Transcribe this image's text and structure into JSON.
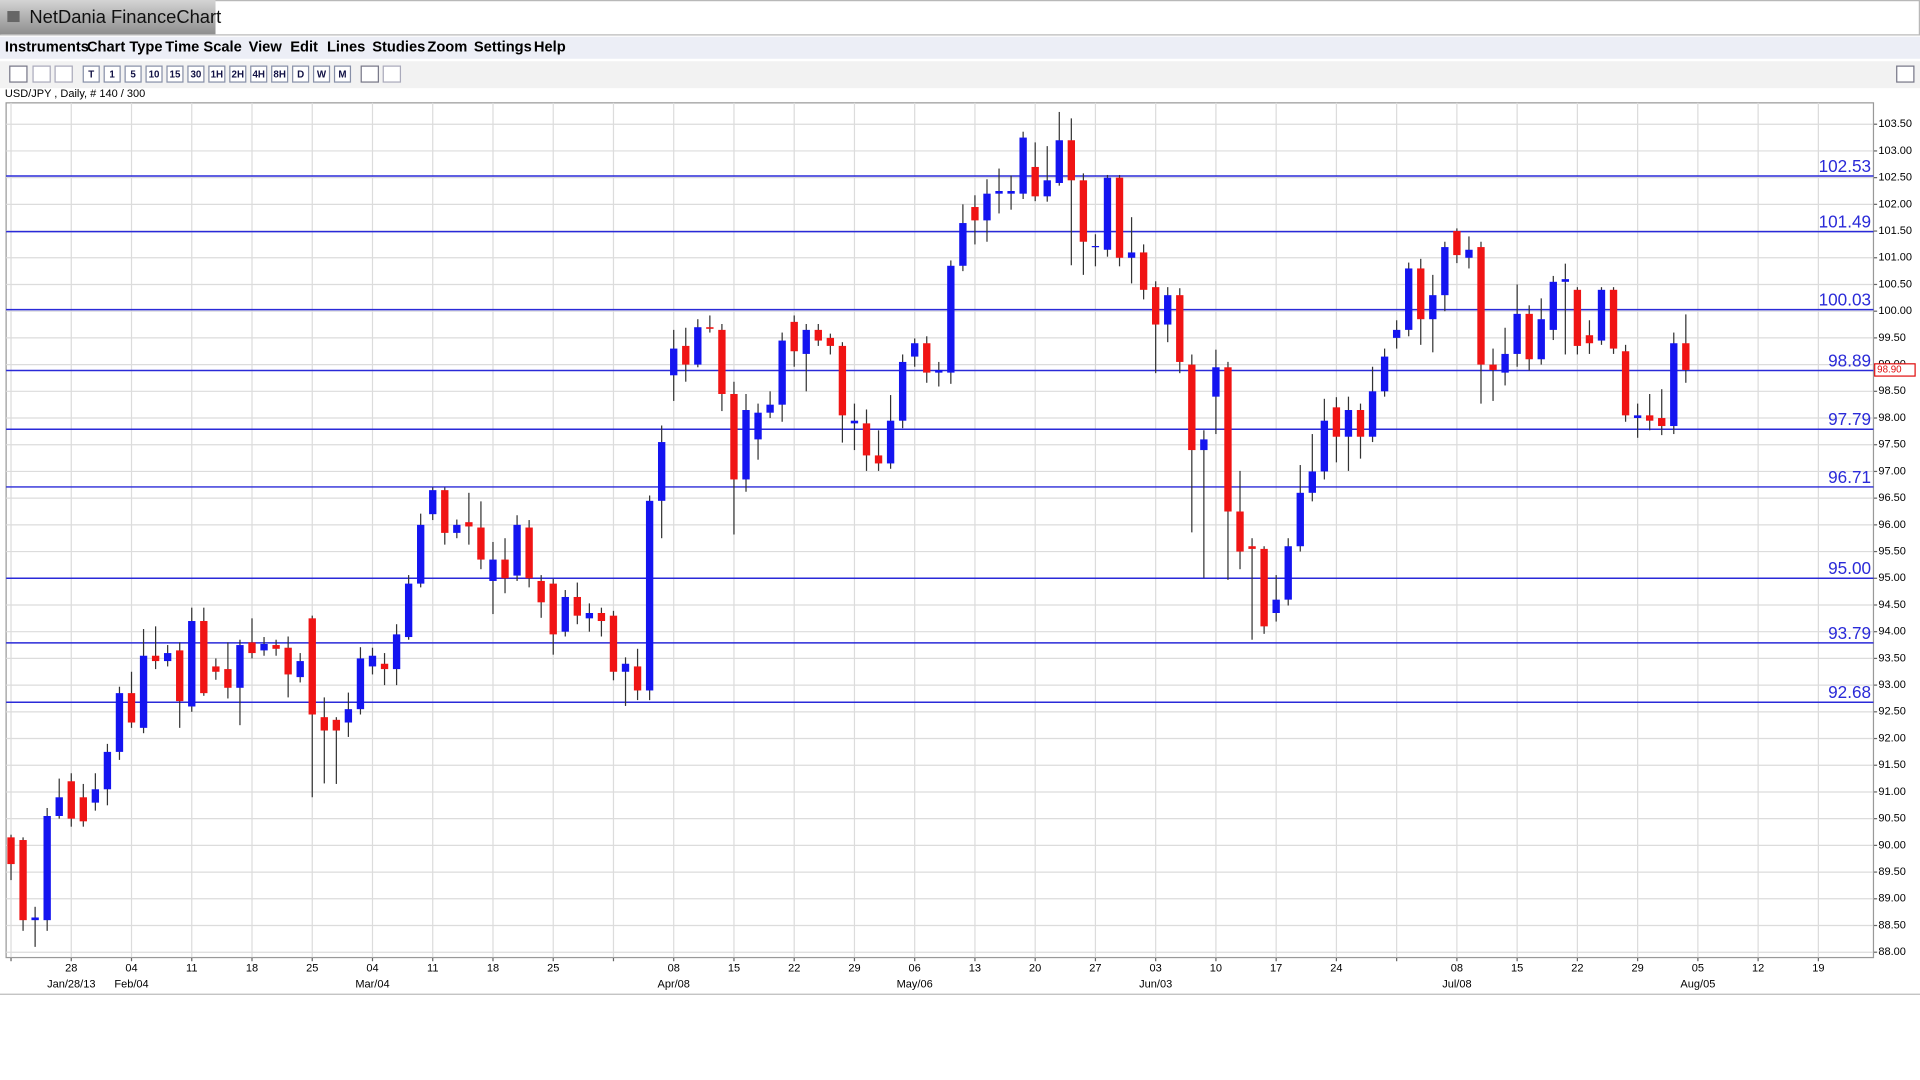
{
  "window": {
    "title": "NetDania FinanceChart"
  },
  "menu": [
    "Instruments",
    "Chart Type",
    "Time Scale",
    "View",
    "Edit",
    "Lines",
    "Studies",
    "Zoom",
    "Settings",
    "Help"
  ],
  "toolbar": {
    "intervals": [
      "T",
      "1",
      "5",
      "10",
      "15",
      "30",
      "1H",
      "2H",
      "4H",
      "8H",
      "D",
      "W",
      "M"
    ]
  },
  "chart_data": {
    "type": "candlestick",
    "instrument_label": "USD/JPY , Daily, # 140 / 300",
    "up_color": "#1414f0",
    "down_color": "#f01414",
    "wick_color": "#333333",
    "grid": true,
    "y_axis_side": "right",
    "categories": [
      null,
      null,
      null,
      null,
      null,
      "28",
      null,
      null,
      null,
      null,
      "04",
      null,
      null,
      null,
      null,
      "11",
      null,
      null,
      null,
      null,
      "18",
      null,
      null,
      null,
      null,
      "25",
      null,
      null,
      null,
      null,
      "04",
      null,
      null,
      null,
      null,
      "11",
      null,
      null,
      null,
      null,
      "18",
      null,
      null,
      null,
      null,
      "25",
      null,
      null,
      null,
      null,
      null,
      null,
      null,
      null,
      null,
      "08",
      null,
      null,
      null,
      null,
      "15",
      null,
      null,
      null,
      null,
      "22",
      null,
      null,
      null,
      null,
      "29",
      null,
      null,
      null,
      null,
      "06",
      null,
      null,
      null,
      null,
      "13",
      null,
      null,
      null,
      null,
      "20",
      null,
      null,
      null,
      null,
      "27",
      null,
      null,
      null,
      null,
      "03",
      null,
      null,
      null,
      null,
      "10",
      null,
      null,
      null,
      null,
      "17",
      null,
      null,
      null,
      null,
      "24",
      null,
      null,
      null,
      null,
      null,
      null,
      null,
      null,
      null,
      "08",
      null,
      null,
      null,
      null,
      "15",
      null,
      null,
      null,
      null,
      "22",
      null,
      null,
      null,
      null,
      "29",
      null,
      null,
      null,
      null,
      "05",
      null,
      null,
      null,
      null,
      "12",
      null,
      null,
      null,
      null,
      "19",
      null,
      null,
      null,
      null
    ],
    "periods": [
      null,
      null,
      null,
      null,
      null,
      "Jan/28/13",
      null,
      null,
      null,
      null,
      "Feb/04",
      null,
      null,
      null,
      null,
      null,
      null,
      null,
      null,
      null,
      null,
      null,
      null,
      null,
      null,
      null,
      null,
      null,
      null,
      null,
      "Mar/04",
      null,
      null,
      null,
      null,
      null,
      null,
      null,
      null,
      null,
      null,
      null,
      null,
      null,
      null,
      null,
      null,
      null,
      null,
      null,
      null,
      null,
      null,
      null,
      null,
      "Apr/08",
      null,
      null,
      null,
      null,
      null,
      null,
      null,
      null,
      null,
      null,
      null,
      null,
      null,
      null,
      null,
      null,
      null,
      null,
      null,
      "May/06",
      null,
      null,
      null,
      null,
      null,
      null,
      null,
      null,
      null,
      null,
      null,
      null,
      null,
      null,
      null,
      null,
      null,
      null,
      null,
      "Jun/03",
      null,
      null,
      null,
      null,
      null,
      null,
      null,
      null,
      null,
      null,
      null,
      null,
      null,
      null,
      null,
      null,
      null,
      null,
      null,
      null,
      null,
      null,
      null,
      null,
      "Jul/08",
      null,
      null,
      null,
      null,
      null,
      null,
      null,
      null,
      null,
      null,
      null,
      null,
      null,
      null,
      null,
      null,
      null,
      null,
      null,
      "Aug/05",
      null,
      null,
      null,
      null,
      null,
      null,
      null,
      null,
      null,
      null,
      null,
      null,
      null,
      null
    ],
    "open": [
      90.15,
      90.1,
      88.6,
      88.6,
      90.55,
      91.2,
      90.9,
      90.8,
      91.05,
      91.75,
      92.85,
      92.2,
      93.55,
      93.45,
      93.65,
      92.6,
      94.2,
      93.35,
      93.3,
      92.95,
      93.8,
      93.65,
      93.75,
      93.7,
      93.15,
      94.25,
      92.4,
      92.35,
      92.3,
      92.55,
      93.35,
      93.4,
      93.3,
      93.9,
      94.9,
      96.2,
      96.65,
      95.85,
      96.05,
      95.95,
      94.95,
      95.35,
      95.05,
      95.95,
      94.95,
      94.9,
      94.0,
      94.65,
      94.25,
      94.35,
      94.3,
      93.25,
      93.35,
      92.9,
      96.45,
      98.8,
      99.35,
      99.0,
      99.7,
      99.65,
      98.45,
      96.85,
      97.6,
      98.1,
      98.25,
      99.8,
      99.2,
      99.65,
      99.5,
      99.35,
      97.9,
      97.9,
      97.3,
      97.15,
      97.95,
      99.15,
      99.4,
      98.85,
      98.85,
      100.85,
      101.95,
      101.7,
      102.2,
      102.2,
      102.2,
      102.7,
      102.15,
      102.4,
      103.2,
      102.45,
      101.2,
      101.15,
      102.5,
      101.0,
      101.1,
      100.45,
      99.75,
      100.3,
      99.0,
      97.4,
      98.4,
      98.95,
      96.25,
      95.6,
      95.55,
      94.35,
      94.6,
      95.6,
      96.6,
      97.0,
      98.2,
      97.65,
      98.15,
      97.65,
      98.5,
      99.5,
      99.65,
      100.8,
      99.85,
      100.3,
      101.5,
      101.0,
      101.2,
      99.0,
      98.85,
      99.2,
      99.95,
      99.1,
      99.65,
      100.55,
      100.4,
      99.55,
      99.45,
      100.4,
      99.25,
      98.0,
      98.05,
      98.0,
      97.85,
      99.4,
      null,
      null,
      null,
      null,
      null,
      null,
      null,
      null,
      null,
      null,
      null,
      null,
      null,
      null,
      null
    ],
    "high": [
      90.2,
      90.15,
      88.85,
      90.7,
      91.25,
      91.35,
      91.15,
      91.35,
      91.9,
      92.97,
      93.25,
      94.05,
      94.1,
      93.75,
      93.8,
      94.45,
      94.45,
      93.5,
      93.8,
      93.85,
      94.25,
      93.9,
      93.85,
      93.91,
      93.6,
      94.3,
      92.77,
      92.4,
      92.86,
      93.71,
      93.7,
      93.6,
      94.14,
      95.06,
      96.21,
      96.7,
      96.7,
      96.1,
      96.6,
      96.44,
      95.68,
      95.75,
      96.18,
      96.09,
      95.06,
      94.99,
      94.78,
      94.92,
      94.53,
      94.45,
      94.39,
      93.52,
      93.68,
      96.55,
      97.86,
      99.65,
      99.69,
      99.85,
      99.92,
      99.76,
      98.68,
      98.45,
      98.27,
      98.5,
      99.6,
      99.92,
      99.76,
      99.76,
      99.58,
      99.42,
      98.27,
      98.16,
      97.77,
      98.43,
      99.19,
      99.49,
      99.53,
      99.05,
      100.95,
      102.0,
      102.17,
      102.47,
      102.67,
      102.54,
      103.36,
      103.16,
      103.09,
      103.73,
      103.61,
      102.58,
      101.44,
      102.55,
      102.55,
      101.76,
      101.25,
      100.56,
      100.45,
      100.43,
      99.19,
      97.77,
      99.28,
      99.05,
      97.01,
      95.75,
      95.6,
      95.06,
      95.75,
      97.12,
      97.7,
      98.36,
      98.39,
      98.4,
      98.27,
      98.96,
      99.3,
      99.83,
      100.91,
      100.98,
      100.68,
      101.3,
      101.55,
      101.4,
      101.3,
      99.3,
      99.69,
      100.5,
      100.11,
      100.24,
      100.66,
      100.89,
      100.45,
      99.83,
      100.45,
      100.45,
      99.37,
      98.27,
      98.45,
      98.54,
      99.6,
      99.94,
      null,
      null,
      null,
      null,
      null,
      null,
      null,
      null,
      null,
      null,
      null,
      null,
      null,
      null,
      null
    ],
    "low": [
      89.35,
      88.4,
      88.1,
      88.4,
      90.5,
      90.35,
      90.35,
      90.65,
      90.75,
      91.6,
      92.2,
      92.1,
      93.3,
      93.35,
      92.2,
      92.5,
      92.8,
      93.1,
      92.75,
      92.25,
      93.5,
      93.55,
      93.55,
      92.77,
      93.05,
      90.9,
      91.16,
      91.15,
      92.03,
      92.45,
      93.2,
      93.0,
      93.0,
      93.85,
      94.83,
      96.09,
      95.63,
      95.75,
      95.63,
      95.17,
      94.33,
      94.72,
      94.95,
      94.83,
      94.26,
      93.57,
      93.91,
      94.14,
      94.0,
      93.91,
      93.09,
      92.61,
      92.72,
      92.72,
      95.75,
      98.32,
      98.68,
      98.95,
      99.6,
      98.13,
      95.82,
      96.62,
      97.22,
      98.0,
      97.93,
      98.96,
      98.5,
      99.35,
      99.19,
      97.54,
      97.4,
      97.01,
      97.01,
      97.05,
      97.81,
      98.96,
      98.66,
      98.59,
      98.64,
      100.75,
      101.25,
      101.3,
      101.83,
      101.9,
      102.1,
      102.06,
      102.05,
      102.35,
      100.86,
      100.68,
      100.84,
      101.02,
      100.84,
      100.52,
      100.22,
      98.84,
      99.42,
      98.84,
      95.86,
      95.01,
      97.7,
      94.97,
      95.17,
      93.85,
      93.96,
      94.19,
      94.49,
      95.5,
      96.44,
      96.85,
      97.17,
      97.01,
      97.24,
      97.55,
      98.4,
      99.3,
      99.53,
      99.37,
      99.23,
      100.0,
      100.9,
      100.8,
      98.27,
      98.32,
      98.61,
      98.96,
      98.89,
      99.0,
      99.46,
      99.19,
      99.19,
      99.2,
      99.37,
      99.2,
      97.93,
      97.63,
      97.77,
      97.68,
      97.7,
      98.66,
      null,
      null,
      null,
      null,
      null,
      null,
      null,
      null,
      null,
      null,
      null,
      null,
      null,
      null,
      null
    ],
    "close": [
      89.65,
      88.6,
      88.65,
      90.55,
      90.9,
      90.5,
      90.45,
      91.05,
      91.75,
      92.85,
      92.3,
      93.55,
      93.45,
      93.6,
      92.7,
      94.2,
      92.85,
      93.25,
      92.95,
      93.75,
      93.6,
      93.77,
      93.68,
      93.2,
      93.45,
      92.45,
      92.15,
      92.15,
      92.55,
      93.5,
      93.55,
      93.3,
      93.95,
      94.9,
      96.0,
      96.65,
      95.85,
      96.0,
      95.97,
      95.35,
      95.35,
      95.0,
      96.0,
      95.0,
      94.55,
      93.95,
      94.65,
      94.3,
      94.35,
      94.2,
      93.25,
      93.4,
      92.9,
      96.45,
      97.55,
      99.3,
      99.0,
      99.7,
      99.67,
      98.45,
      96.85,
      98.15,
      98.1,
      98.25,
      99.45,
      99.25,
      99.65,
      99.45,
      99.35,
      98.05,
      97.95,
      97.3,
      97.15,
      97.95,
      99.05,
      99.4,
      98.85,
      98.9,
      100.85,
      101.65,
      101.7,
      102.2,
      102.25,
      102.25,
      103.25,
      102.15,
      102.45,
      103.2,
      102.45,
      101.3,
      101.22,
      102.5,
      101.0,
      101.1,
      100.4,
      99.75,
      100.3,
      99.05,
      97.4,
      97.6,
      98.95,
      96.25,
      95.5,
      95.55,
      94.1,
      94.6,
      95.6,
      96.6,
      97.0,
      97.95,
      97.65,
      98.15,
      97.65,
      98.5,
      99.15,
      99.65,
      100.8,
      99.85,
      100.3,
      101.2,
      101.05,
      101.15,
      99.0,
      98.9,
      99.2,
      99.95,
      99.1,
      99.85,
      100.55,
      100.6,
      99.35,
      99.4,
      100.4,
      99.3,
      98.05,
      98.05,
      97.95,
      97.85,
      99.4,
      98.9,
      null,
      null,
      null,
      null,
      null,
      null,
      null,
      null,
      null,
      null,
      null,
      null,
      null,
      null,
      null
    ],
    "ylim": [
      87.9,
      103.9
    ],
    "yticks": [
      {
        "value": 88,
        "label": "88.00"
      },
      {
        "value": 88.5,
        "label": "88.50"
      },
      {
        "value": 89,
        "label": "89.00"
      },
      {
        "value": 89.5,
        "label": "89.50"
      },
      {
        "value": 90,
        "label": "90.00"
      },
      {
        "value": 90.5,
        "label": "90.50"
      },
      {
        "value": 91,
        "label": "91.00"
      },
      {
        "value": 91.5,
        "label": "91.50"
      },
      {
        "value": 92,
        "label": "92.00"
      },
      {
        "value": 92.5,
        "label": "92.50"
      },
      {
        "value": 93,
        "label": "93.00"
      },
      {
        "value": 93.5,
        "label": "93.50"
      },
      {
        "value": 94,
        "label": "94.00"
      },
      {
        "value": 94.5,
        "label": "94.50"
      },
      {
        "value": 95,
        "label": "95.00"
      },
      {
        "value": 95.5,
        "label": "95.50"
      },
      {
        "value": 96,
        "label": "96.00"
      },
      {
        "value": 96.5,
        "label": "96.50"
      },
      {
        "value": 97,
        "label": "97.00"
      },
      {
        "value": 97.5,
        "label": "97.50"
      },
      {
        "value": 98,
        "label": "98.00"
      },
      {
        "value": 98.5,
        "label": "98.50"
      },
      {
        "value": 99,
        "label": "99.00"
      },
      {
        "value": 99.5,
        "label": "99.50"
      },
      {
        "value": 100,
        "label": "100.00"
      },
      {
        "value": 100.5,
        "label": "100.50"
      },
      {
        "value": 101,
        "label": "101.00"
      },
      {
        "value": 101.5,
        "label": "101.50"
      },
      {
        "value": 102,
        "label": "102.00"
      },
      {
        "value": 102.5,
        "label": "102.50"
      },
      {
        "value": 103,
        "label": "103.00"
      },
      {
        "value": 103.5,
        "label": "103.50"
      }
    ],
    "levels": [
      102.53,
      101.49,
      100.03,
      98.89,
      97.79,
      96.71,
      {
        "value": 95,
        "label": "95.00"
      },
      93.79,
      92.68
    ],
    "level_color": "#2a2ad8",
    "last_price": {
      "value": 98.9,
      "label": "98.90"
    },
    "last_price_color": "#e01010"
  }
}
